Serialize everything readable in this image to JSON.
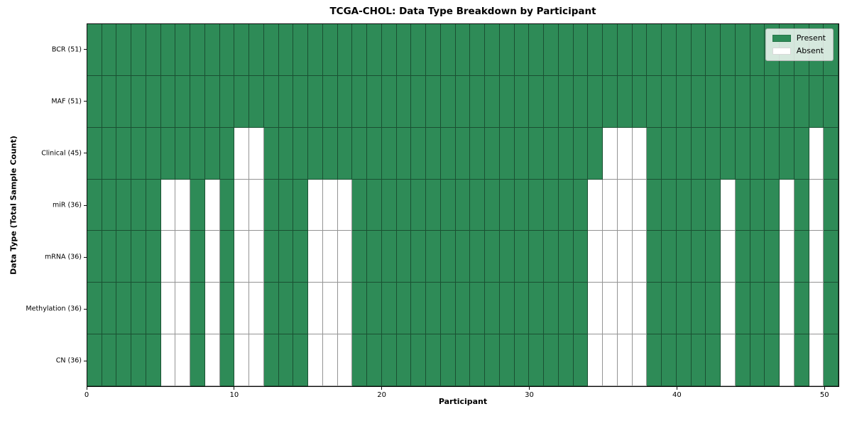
{
  "chart_data": {
    "type": "heatmap",
    "title": "TCGA-CHOL: Data Type Breakdown by Participant",
    "xlabel": "Participant",
    "ylabel": "Data Type (Total Sample Count)",
    "n_participants": 51,
    "xlim": [
      0,
      51
    ],
    "x_ticks": [
      0,
      10,
      20,
      30,
      40,
      50
    ],
    "grid": true,
    "legend_position": "upper right",
    "legend": [
      {
        "label": "Present",
        "color": "#2e8b57"
      },
      {
        "label": "Absent",
        "color": "#ffffff"
      }
    ],
    "rows": [
      {
        "label": "BCR (51)",
        "data_type": "BCR",
        "present_count": 51,
        "absent_participants": []
      },
      {
        "label": "MAF (51)",
        "data_type": "MAF",
        "present_count": 51,
        "absent_participants": []
      },
      {
        "label": "Clinical (45)",
        "data_type": "Clinical",
        "present_count": 45,
        "absent_participants": [
          10,
          11,
          35,
          36,
          37,
          49
        ]
      },
      {
        "label": "miR (36)",
        "data_type": "miR",
        "present_count": 36,
        "absent_participants": [
          5,
          6,
          8,
          10,
          11,
          15,
          16,
          17,
          34,
          35,
          36,
          37,
          43,
          47,
          49
        ]
      },
      {
        "label": "mRNA (36)",
        "data_type": "mRNA",
        "present_count": 36,
        "absent_participants": [
          5,
          6,
          8,
          10,
          11,
          15,
          16,
          17,
          34,
          35,
          36,
          37,
          43,
          47,
          49
        ]
      },
      {
        "label": "Methylation (36)",
        "data_type": "Methylation",
        "present_count": 36,
        "absent_participants": [
          5,
          6,
          8,
          10,
          11,
          15,
          16,
          17,
          34,
          35,
          36,
          37,
          43,
          47,
          49
        ]
      },
      {
        "label": "CN (36)",
        "data_type": "CN",
        "present_count": 36,
        "absent_participants": [
          5,
          6,
          8,
          10,
          11,
          15,
          16,
          17,
          34,
          35,
          36,
          37,
          43,
          47,
          49
        ]
      }
    ]
  }
}
